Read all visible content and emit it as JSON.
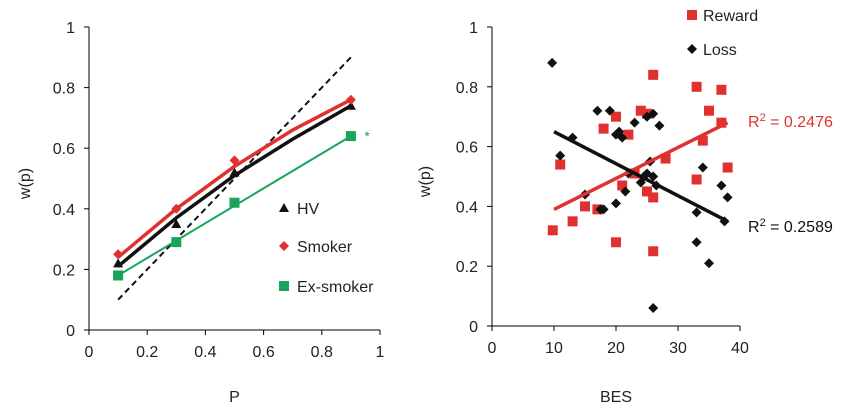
{
  "chart_data": [
    {
      "type": "line",
      "xlabel": "P",
      "ylabel": "w(p)",
      "xlim": [
        0,
        1
      ],
      "ylim": [
        0,
        1
      ],
      "xticks": [
        "0",
        "0.2",
        "0.4",
        "0.6",
        "0.8",
        "1"
      ],
      "yticks": [
        "0",
        "0.2",
        "0.4",
        "0.6",
        "0.8",
        "1"
      ],
      "reference_line": {
        "x": [
          0.1,
          0.9
        ],
        "y": [
          0.1,
          0.9
        ],
        "style": "dashed",
        "color": "#111111"
      },
      "series": [
        {
          "name": "HV",
          "marker": "triangle",
          "color": "#111111",
          "x": [
            0.1,
            0.3,
            0.5,
            0.9
          ],
          "y": [
            0.22,
            0.35,
            0.52,
            0.74
          ],
          "fit": [
            [
              0.1,
              0.21
            ],
            [
              0.3,
              0.37
            ],
            [
              0.5,
              0.51
            ],
            [
              0.7,
              0.63
            ],
            [
              0.9,
              0.74
            ]
          ]
        },
        {
          "name": "Smoker",
          "marker": "diamond",
          "color": "#e03030",
          "x": [
            0.1,
            0.3,
            0.5,
            0.9
          ],
          "y": [
            0.25,
            0.4,
            0.56,
            0.76
          ],
          "fit": [
            [
              0.1,
              0.24
            ],
            [
              0.3,
              0.4
            ],
            [
              0.5,
              0.54
            ],
            [
              0.7,
              0.66
            ],
            [
              0.9,
              0.76
            ]
          ]
        },
        {
          "name": "Ex-smoker",
          "marker": "square",
          "color": "#1aa35a",
          "x": [
            0.1,
            0.3,
            0.5,
            0.9
          ],
          "y": [
            0.18,
            0.29,
            0.42,
            0.64
          ],
          "fit": [
            [
              0.1,
              0.18
            ],
            [
              0.9,
              0.64
            ]
          ]
        }
      ],
      "annotations": [
        {
          "text": "*",
          "x": 0.96,
          "y": 0.64,
          "color": "#1aa35a"
        }
      ]
    },
    {
      "type": "scatter",
      "xlabel": "BES",
      "ylabel": "w(p)",
      "xlim": [
        0,
        40
      ],
      "ylim": [
        0,
        1
      ],
      "xticks": [
        "0",
        "10",
        "20",
        "30",
        "40"
      ],
      "yticks": [
        "0",
        "0.2",
        "0.4",
        "0.6",
        "0.8",
        "1"
      ],
      "series": [
        {
          "name": "Reward",
          "marker": "square",
          "color": "#e03030",
          "points": [
            [
              9.8,
              0.32
            ],
            [
              11,
              0.54
            ],
            [
              13,
              0.35
            ],
            [
              15,
              0.4
            ],
            [
              17,
              0.39
            ],
            [
              18,
              0.66
            ],
            [
              20,
              0.7
            ],
            [
              20,
              0.28
            ],
            [
              21,
              0.47
            ],
            [
              22,
              0.64
            ],
            [
              23,
              0.51
            ],
            [
              24,
              0.72
            ],
            [
              25,
              0.71
            ],
            [
              25,
              0.45
            ],
            [
              26,
              0.84
            ],
            [
              26,
              0.43
            ],
            [
              26,
              0.25
            ],
            [
              28,
              0.56
            ],
            [
              33,
              0.8
            ],
            [
              33,
              0.49
            ],
            [
              34,
              0.62
            ],
            [
              35,
              0.72
            ],
            [
              37,
              0.79
            ],
            [
              37,
              0.68
            ],
            [
              38,
              0.53
            ]
          ],
          "fit": {
            "x": [
              10,
              38
            ],
            "y": [
              0.39,
              0.68
            ]
          },
          "r2": "R2 = 0.2476"
        },
        {
          "name": "Loss",
          "marker": "diamond",
          "color": "#111111",
          "points": [
            [
              9.7,
              0.88
            ],
            [
              11,
              0.57
            ],
            [
              13,
              0.63
            ],
            [
              15,
              0.44
            ],
            [
              17,
              0.72
            ],
            [
              17.5,
              0.39
            ],
            [
              18,
              0.39
            ],
            [
              19,
              0.72
            ],
            [
              20,
              0.64
            ],
            [
              20.5,
              0.65
            ],
            [
              20,
              0.41
            ],
            [
              21,
              0.63
            ],
            [
              21.5,
              0.45
            ],
            [
              22,
              0.51
            ],
            [
              23,
              0.68
            ],
            [
              24,
              0.48
            ],
            [
              24.5,
              0.5
            ],
            [
              25,
              0.7
            ],
            [
              25,
              0.51
            ],
            [
              25.5,
              0.55
            ],
            [
              26,
              0.71
            ],
            [
              26,
              0.5
            ],
            [
              26,
              0.06
            ],
            [
              26.5,
              0.47
            ],
            [
              27,
              0.67
            ],
            [
              33,
              0.38
            ],
            [
              33,
              0.28
            ],
            [
              34,
              0.53
            ],
            [
              35,
              0.21
            ],
            [
              37,
              0.47
            ],
            [
              37.5,
              0.35
            ],
            [
              38,
              0.43
            ]
          ],
          "fit": {
            "x": [
              10,
              38
            ],
            "y": [
              0.65,
              0.35
            ]
          },
          "r2": "R2 = 0.2589"
        }
      ]
    }
  ]
}
